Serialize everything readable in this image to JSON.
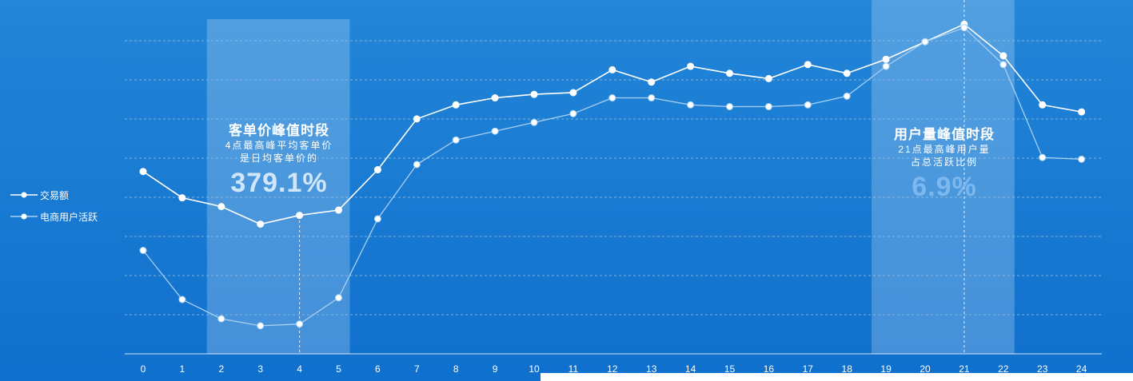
{
  "colors": {
    "background_top": "#2386d8",
    "background_bottom": "#1070cd",
    "series_1": "#ffffff",
    "series_2": "#a9d0f3",
    "highlight_band": "#cde4f8",
    "grid": "#8cc1ef"
  },
  "highlights": {
    "left": {
      "title": "客单价峰值时段",
      "line1": "4点最高峰平均客单价",
      "line2": "是日均客单价的",
      "value": "379.1%"
    },
    "right": {
      "title": "用户量峰值时段",
      "line1": "21点最高峰用户量",
      "line2": "占总活跃比例",
      "value": "6.9%"
    }
  },
  "chart_data": {
    "type": "line",
    "title": "",
    "xlabel": "",
    "ylabel": "",
    "x": [
      "0",
      "1",
      "2",
      "3",
      "4",
      "5",
      "6",
      "7",
      "8",
      "9",
      "10",
      "11",
      "12",
      "13",
      "14",
      "15",
      "16",
      "17",
      "18",
      "19",
      "20",
      "21",
      "22",
      "23",
      "24"
    ],
    "ylim": [
      0,
      100
    ],
    "grid": true,
    "legend_position": "left",
    "highlight_ranges": [
      [
        2,
        5
      ],
      [
        19,
        22
      ]
    ],
    "reference_lines_at_x": [
      4,
      21
    ],
    "series": [
      {
        "name": "交易额",
        "values": [
          52.0,
          44.5,
          42.0,
          37.0,
          39.5,
          41.0,
          52.5,
          67.0,
          71.0,
          73.0,
          74.0,
          74.5,
          81.0,
          77.5,
          82.0,
          80.0,
          78.5,
          82.5,
          80.0,
          84.0,
          89.0,
          94.0,
          85.0,
          71.0,
          69.0
        ]
      },
      {
        "name": "电商用户活跃",
        "values": [
          29.5,
          15.5,
          10.0,
          8.0,
          8.5,
          16.0,
          38.5,
          54.0,
          61.0,
          63.5,
          66.0,
          68.5,
          73.0,
          73.0,
          71.0,
          70.5,
          70.5,
          71.0,
          73.5,
          82.0,
          89.0,
          93.0,
          82.5,
          56.0,
          55.5
        ]
      }
    ]
  }
}
